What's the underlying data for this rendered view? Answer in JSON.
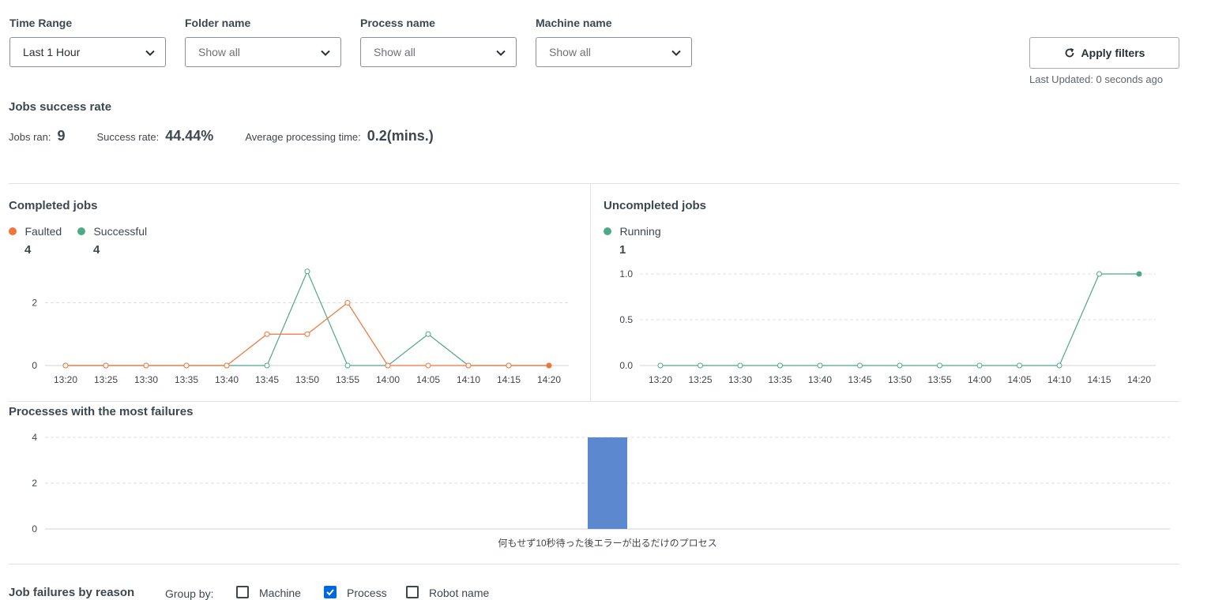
{
  "filters": {
    "time_range": {
      "label": "Time Range",
      "value": "Last 1 Hour"
    },
    "folder": {
      "label": "Folder name",
      "value": "Show all"
    },
    "process": {
      "label": "Process name",
      "value": "Show all"
    },
    "machine": {
      "label": "Machine name",
      "value": "Show all"
    },
    "apply_label": "Apply filters",
    "last_updated": "Last Updated: 0 seconds ago"
  },
  "success": {
    "title": "Jobs success rate",
    "jobs_ran_label": "Jobs ran:",
    "jobs_ran_value": "9",
    "rate_label": "Success rate:",
    "rate_value": "44.44%",
    "avg_label": "Average processing time:",
    "avg_value": "0.2(mins.)"
  },
  "completed": {
    "title": "Completed jobs",
    "legend": [
      {
        "name": "Faulted",
        "count": "4",
        "color": "#f0763b"
      },
      {
        "name": "Successful",
        "count": "4",
        "color": "#4fa888"
      }
    ]
  },
  "uncompleted": {
    "title": "Uncompleted jobs",
    "legend": [
      {
        "name": "Running",
        "count": "1",
        "color": "#4fa888"
      }
    ]
  },
  "failures": {
    "title": "Processes with the most failures"
  },
  "reasons": {
    "title": "Job failures by reason",
    "group_by_label": "Group by:",
    "options": [
      {
        "label": "Machine",
        "checked": false
      },
      {
        "label": "Process",
        "checked": true
      },
      {
        "label": "Robot name",
        "checked": false
      }
    ]
  },
  "chart_data": [
    {
      "type": "line",
      "title": "Completed jobs",
      "x": [
        "13:20",
        "13:25",
        "13:30",
        "13:35",
        "13:40",
        "13:45",
        "13:50",
        "13:55",
        "14:00",
        "14:05",
        "14:10",
        "14:15",
        "14:20"
      ],
      "series": [
        {
          "name": "Successful",
          "color": "#4fa888",
          "values": [
            0,
            0,
            0,
            0,
            0,
            0,
            3,
            0,
            0,
            1,
            0,
            0,
            0
          ]
        },
        {
          "name": "Faulted",
          "color": "#f0763b",
          "values": [
            0,
            0,
            0,
            0,
            0,
            1,
            1,
            2,
            0,
            0,
            0,
            0,
            0
          ]
        }
      ],
      "yticks": [
        "0",
        "2"
      ],
      "ylim": [
        0,
        3.2
      ],
      "grid": true
    },
    {
      "type": "line",
      "title": "Uncompleted jobs",
      "x": [
        "13:20",
        "13:25",
        "13:30",
        "13:35",
        "13:40",
        "13:45",
        "13:50",
        "13:55",
        "14:00",
        "14:05",
        "14:10",
        "14:15",
        "14:20"
      ],
      "series": [
        {
          "name": "Running",
          "color": "#4fa888",
          "values": [
            0,
            0,
            0,
            0,
            0,
            0,
            0,
            0,
            0,
            0,
            0,
            1,
            1
          ]
        }
      ],
      "yticks": [
        "0.0",
        "0.5",
        "1.0"
      ],
      "ylim": [
        0,
        1.0
      ],
      "grid": true
    },
    {
      "type": "bar",
      "title": "Processes with the most failures",
      "categories": [
        "何もせず10秒待った後エラーが出るだけのプロセス"
      ],
      "values": [
        4
      ],
      "color": "#5b88cf",
      "yticks": [
        "0",
        "2",
        "4"
      ],
      "ylim": [
        0,
        4
      ],
      "grid": true
    }
  ]
}
